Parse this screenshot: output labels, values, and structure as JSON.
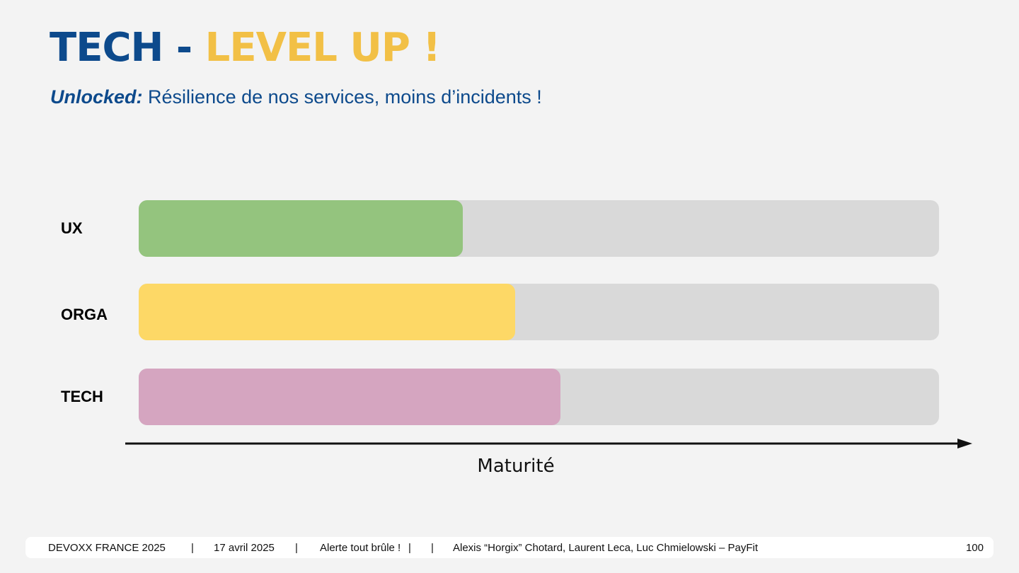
{
  "title": {
    "part1": "TECH",
    "separator": "-",
    "part2": "LEVEL UP !"
  },
  "subtitle": {
    "lead": "Unlocked:",
    "text": "Résilience de nos services, moins d’incidents !"
  },
  "maturity_bars": [
    {
      "label": "UX",
      "value_pct": 40.5,
      "color": "#94c47e"
    },
    {
      "label": "ORGA",
      "value_pct": 47,
      "color": "#fdd866"
    },
    {
      "label": "TECH",
      "value_pct": 52.7,
      "color": "#d5a5c0"
    }
  ],
  "axis": {
    "label": "Maturité"
  },
  "footer": {
    "event": "DEVOXX FRANCE 2025",
    "divider": "|",
    "date": "17 avril 2025",
    "talk": "Alerte tout brûle !",
    "speakers": "Alexis “Horgix” Chotard, Laurent Leca, Luc Chmielowski – PayFit",
    "page_number": "100"
  },
  "colors": {
    "title_blue": "#0d4a8c",
    "title_yellow": "#f2c046",
    "track_grey": "#d9d9d9",
    "background": "#f3f3f3"
  }
}
